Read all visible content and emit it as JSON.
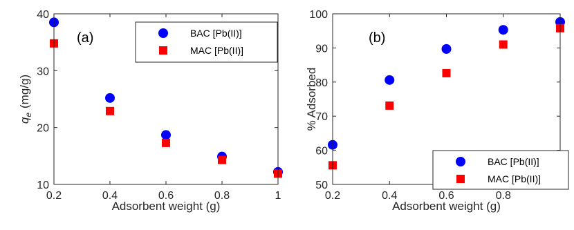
{
  "chart_data": [
    {
      "type": "scatter",
      "panel_label": "(a)",
      "xlabel": "Adsorbent weight (g)",
      "ylabel_symbol": "q",
      "ylabel_subscript": "e",
      "ylabel_unit": "(mg/g)",
      "xlim": [
        0.2,
        1.0
      ],
      "ylim": [
        10,
        40
      ],
      "xticks": [
        "0.2",
        "0.4",
        "0.6",
        "0.8",
        "1"
      ],
      "yticks": [
        "10",
        "20",
        "30",
        "40"
      ],
      "legend_position": "top-right",
      "series": [
        {
          "name": "BAC [Pb(II)]",
          "marker": "circle",
          "color": "#0000ff",
          "x": [
            0.2,
            0.4,
            0.6,
            0.8,
            1.0
          ],
          "y": [
            38.5,
            25.2,
            18.7,
            14.9,
            12.2
          ]
        },
        {
          "name": "MAC [Pb(II)]",
          "marker": "square",
          "color": "#ff0000",
          "x": [
            0.2,
            0.4,
            0.6,
            0.8,
            1.0
          ],
          "y": [
            34.8,
            22.9,
            17.3,
            14.3,
            11.9
          ]
        }
      ]
    },
    {
      "type": "scatter",
      "panel_label": "(b)",
      "xlabel": "Adsorbent weight (g)",
      "ylabel": "% Adsorbed",
      "xlim": [
        0.2,
        1.0
      ],
      "ylim": [
        50,
        100
      ],
      "xticks": [
        "0.2",
        "0.4",
        "0.6",
        "0.8"
      ],
      "yticks": [
        "50",
        "60",
        "70",
        "80",
        "90",
        "100"
      ],
      "legend_position": "bottom-right",
      "series": [
        {
          "name": "BAC [Pb(II)]",
          "marker": "circle",
          "color": "#0000ff",
          "x": [
            0.2,
            0.4,
            0.6,
            0.8,
            1.0
          ],
          "y": [
            61.6,
            80.6,
            89.7,
            95.3,
            97.6
          ]
        },
        {
          "name": "MAC [Pb(II)]",
          "marker": "square",
          "color": "#ff0000",
          "x": [
            0.2,
            0.4,
            0.6,
            0.8,
            1.0
          ],
          "y": [
            55.6,
            73.1,
            82.6,
            91.0,
            95.8
          ]
        }
      ]
    }
  ]
}
